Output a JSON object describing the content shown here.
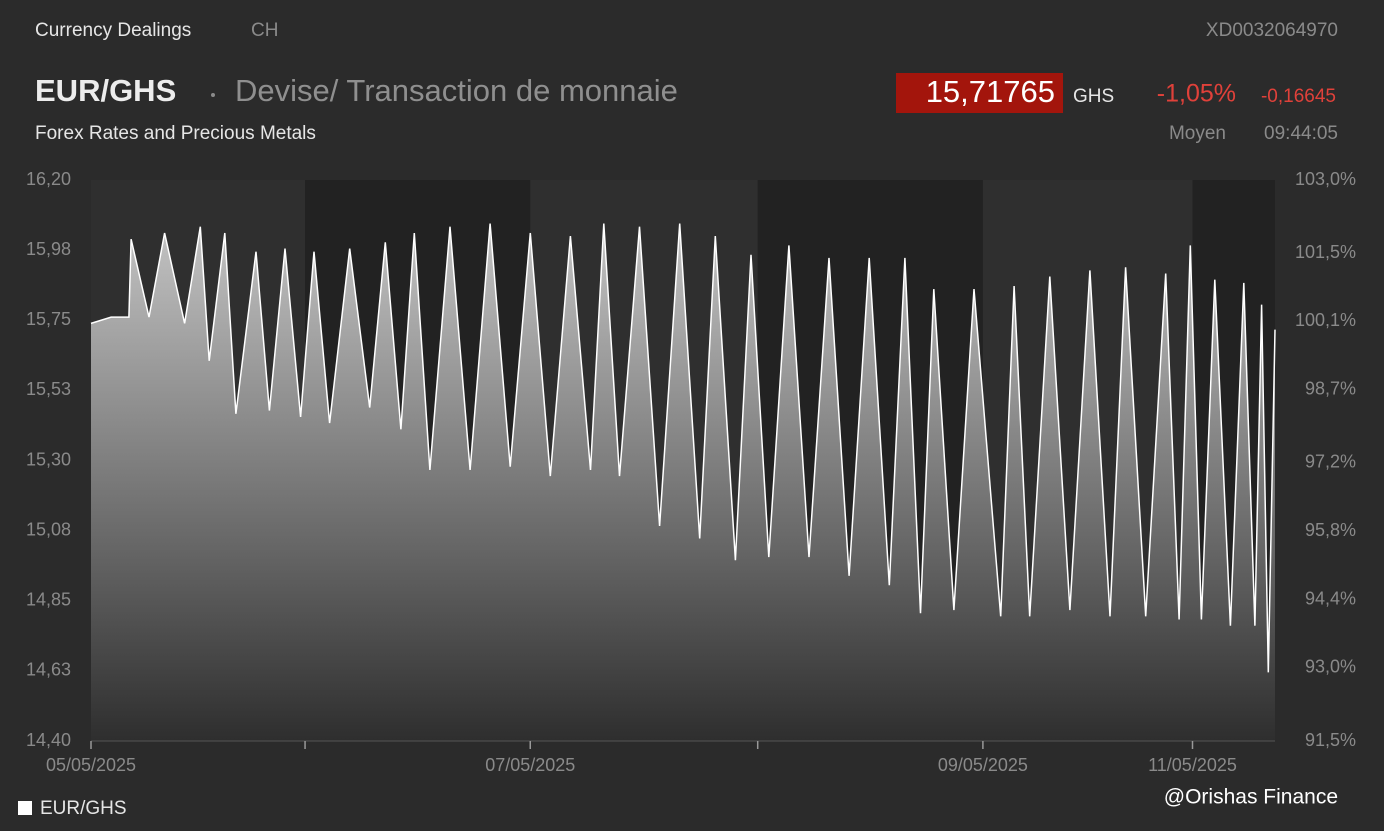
{
  "header": {
    "category": "Currency Dealings",
    "country": "CH",
    "isin": "XD0032064970",
    "symbol": "EUR/GHS",
    "description": "Devise/ Transaction de monnaie",
    "price": "15,71765",
    "currency": "GHS",
    "change_pct": "-1,05%",
    "change_abs": "-0,16645",
    "market": "Forex Rates and Precious Metals",
    "price_type": "Moyen",
    "time": "09:44:05"
  },
  "watermark": "@Orishas Finance",
  "chart_data": {
    "type": "area",
    "x": [
      0.0,
      0.09,
      0.17,
      0.18,
      0.26,
      0.33,
      0.42,
      0.49,
      0.53,
      0.6,
      0.65,
      0.74,
      0.8,
      0.87,
      0.94,
      1.0,
      1.07,
      1.16,
      1.25,
      1.32,
      1.39,
      1.45,
      1.52,
      1.61,
      1.7,
      1.79,
      1.88,
      1.97,
      2.06,
      2.15,
      2.24,
      2.3,
      2.37,
      2.46,
      2.55,
      2.64,
      2.73,
      2.8,
      2.89,
      2.96,
      3.04,
      3.13,
      3.22,
      3.31,
      3.4,
      3.49,
      3.58,
      3.65,
      3.72,
      3.78,
      3.87,
      3.96,
      4.08,
      4.14,
      4.21,
      4.3,
      4.39,
      4.48,
      4.57,
      4.64,
      4.73,
      4.82,
      4.88,
      4.93,
      4.98,
      5.04,
      5.11,
      5.17,
      5.22,
      5.25,
      5.28,
      5.31
    ],
    "series": [
      {
        "name": "EUR/GHS",
        "color": "#ffffff",
        "values": [
          15.74,
          15.76,
          15.76,
          16.01,
          15.76,
          16.03,
          15.74,
          16.05,
          15.62,
          16.03,
          15.45,
          15.97,
          15.46,
          15.98,
          15.44,
          15.97,
          15.42,
          15.98,
          15.47,
          16.0,
          15.4,
          16.03,
          15.27,
          16.05,
          15.27,
          16.06,
          15.28,
          16.03,
          15.25,
          16.02,
          15.27,
          16.06,
          15.25,
          16.05,
          15.09,
          16.06,
          15.05,
          16.02,
          14.98,
          15.96,
          14.99,
          15.99,
          14.99,
          15.95,
          14.93,
          15.95,
          14.9,
          15.95,
          14.81,
          15.85,
          14.82,
          15.85,
          14.8,
          15.86,
          14.8,
          15.89,
          14.82,
          15.91,
          14.8,
          15.92,
          14.8,
          15.9,
          14.79,
          15.99,
          14.79,
          15.88,
          14.77,
          15.87,
          14.77,
          15.8,
          14.62,
          15.72
        ]
      }
    ],
    "xlim": [
      0,
      5.31
    ],
    "xticks": [
      {
        "value": 0,
        "label": "05/05/2025"
      },
      {
        "value": 0.96,
        "label": null
      },
      {
        "value": 1.97,
        "label": "07/05/2025"
      },
      {
        "value": 2.99,
        "label": null
      },
      {
        "value": 4.0,
        "label": "09/05/2025"
      },
      {
        "value": 4.94,
        "label": "11/05/2025"
      }
    ],
    "ylim": [
      14.4,
      16.2
    ],
    "yticks": [
      {
        "value": 16.2,
        "label": "16,20"
      },
      {
        "value": 15.975,
        "label": "15,98"
      },
      {
        "value": 15.75,
        "label": "15,75"
      },
      {
        "value": 15.525,
        "label": "15,53"
      },
      {
        "value": 15.3,
        "label": "15,30"
      },
      {
        "value": 15.075,
        "label": "15,08"
      },
      {
        "value": 14.85,
        "label": "14,85"
      },
      {
        "value": 14.625,
        "label": "14,63"
      },
      {
        "value": 14.4,
        "label": "14,40"
      }
    ],
    "y2lim": [
      91.5,
      103.0
    ],
    "y2ticks": [
      {
        "value": 103.0,
        "label": "103,0%"
      },
      {
        "value": 101.5,
        "label": "101,5%"
      },
      {
        "value": 100.1,
        "label": "100,1%"
      },
      {
        "value": 98.7,
        "label": "98,7%"
      },
      {
        "value": 97.2,
        "label": "97,2%"
      },
      {
        "value": 95.8,
        "label": "95,8%"
      },
      {
        "value": 94.4,
        "label": "94,4%"
      },
      {
        "value": 93.0,
        "label": "93,0%"
      },
      {
        "value": 91.5,
        "label": "91,5%"
      }
    ],
    "legend": "bottom-left"
  }
}
